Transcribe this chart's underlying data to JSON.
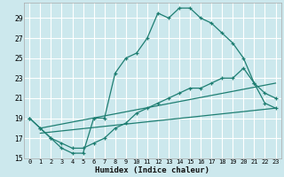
{
  "xlabel": "Humidex (Indice chaleur)",
  "bg_color": "#cce8ed",
  "grid_color": "#ffffff",
  "line_color": "#1e7e72",
  "xlim": [
    -0.5,
    23.5
  ],
  "ylim": [
    15,
    30.5
  ],
  "yticks": [
    15,
    17,
    19,
    21,
    23,
    25,
    27,
    29
  ],
  "xticks": [
    0,
    1,
    2,
    3,
    4,
    5,
    6,
    7,
    8,
    9,
    10,
    11,
    12,
    13,
    14,
    15,
    16,
    17,
    18,
    19,
    20,
    21,
    22,
    23
  ],
  "series1_x": [
    0,
    1,
    2,
    3,
    4,
    5,
    6,
    7,
    8,
    9,
    10,
    11,
    12,
    13,
    14,
    15,
    16,
    17,
    18,
    19,
    20,
    21,
    22,
    23
  ],
  "series1_y": [
    19.0,
    18.0,
    17.0,
    16.0,
    15.5,
    15.5,
    19.0,
    19.0,
    23.5,
    25.0,
    25.5,
    27.0,
    29.5,
    29.0,
    30.0,
    30.0,
    29.0,
    28.5,
    27.5,
    26.5,
    25.0,
    22.5,
    20.5,
    20.0
  ],
  "series2_x": [
    0,
    1,
    2,
    3,
    4,
    5,
    6,
    7,
    8,
    9,
    10,
    11,
    12,
    13,
    14,
    15,
    16,
    17,
    18,
    19,
    20,
    21,
    22,
    23
  ],
  "series2_y": [
    19.0,
    18.0,
    17.0,
    16.5,
    16.0,
    16.0,
    16.5,
    17.0,
    18.0,
    18.5,
    19.5,
    20.0,
    20.5,
    21.0,
    21.5,
    22.0,
    22.0,
    22.5,
    23.0,
    23.0,
    24.0,
    22.5,
    21.5,
    21.0
  ],
  "series3_x": [
    1,
    23
  ],
  "series3_y": [
    17.5,
    20.0
  ],
  "series4_x": [
    1,
    23
  ],
  "series4_y": [
    18.0,
    22.5
  ]
}
